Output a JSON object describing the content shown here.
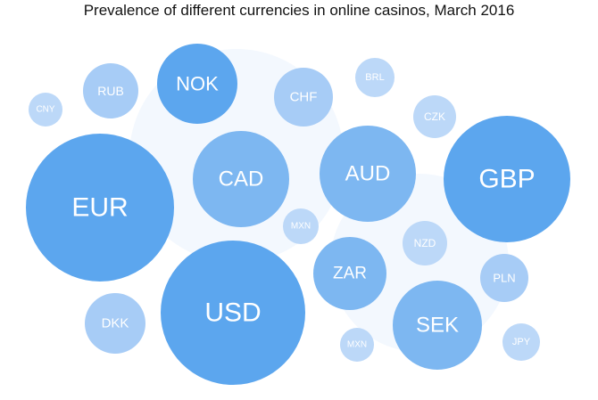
{
  "chart_data": {
    "type": "bubble",
    "title": "Prevalence of different currencies in online casinos, March 2016",
    "colors": {
      "large": "#5ca6ee",
      "medium": "#7db7f1",
      "small": "#a7ccf6",
      "tiny": "#bcd8f8",
      "backdrop": "#f3f8fe"
    },
    "bubbles": [
      {
        "label": "EUR"
      },
      {
        "label": "USD"
      },
      {
        "label": "GBP"
      },
      {
        "label": "AUD"
      },
      {
        "label": "CAD"
      },
      {
        "label": "NOK"
      },
      {
        "label": "SEK"
      },
      {
        "label": "ZAR"
      },
      {
        "label": "CHF"
      },
      {
        "label": "RUB"
      },
      {
        "label": "DKK"
      },
      {
        "label": "PLN"
      },
      {
        "label": "NZD"
      },
      {
        "label": "CZK"
      },
      {
        "label": "BRL"
      },
      {
        "label": "JPY"
      },
      {
        "label": "CNY"
      },
      {
        "label": "MXN"
      },
      {
        "label": "MXN"
      }
    ]
  }
}
